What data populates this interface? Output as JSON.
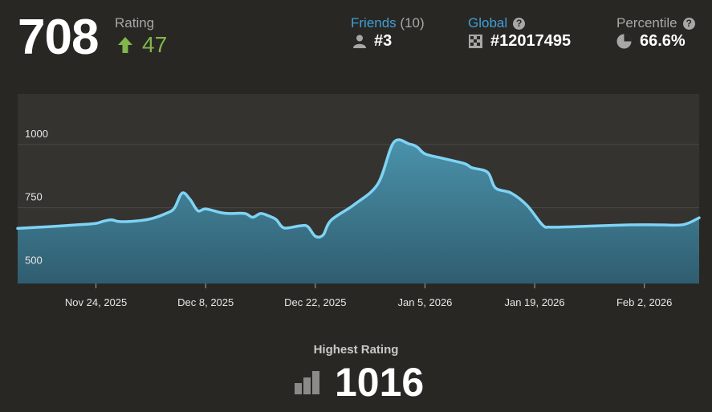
{
  "header": {
    "current_rating": "708",
    "rating_label": "Rating",
    "delta": "47",
    "delta_color": "#81b64c",
    "friends": {
      "label": "Friends",
      "count": "(10)",
      "rank": "#3",
      "icon": "person-icon"
    },
    "global": {
      "label": "Global",
      "help": "?",
      "rank": "#12017495",
      "icon": "checker-icon"
    },
    "percentile": {
      "label": "Percentile",
      "help": "?",
      "value": "66.6%",
      "icon": "pie-icon"
    }
  },
  "chart_data": {
    "type": "area",
    "line_color": "#7fd3f5",
    "fill_color": "#3f8aa4",
    "grid": true,
    "y_ticks": [
      500,
      750,
      1000
    ],
    "ylim": [
      450,
      1200
    ],
    "x_tick_labels": [
      "Nov 24, 2025",
      "Dec 8, 2025",
      "Dec 22, 2025",
      "Jan 5, 2026",
      "Jan 19, 2026",
      "Feb 2, 2026"
    ],
    "x_tick_dates": [
      "2025-11-24",
      "2025-12-08",
      "2025-12-22",
      "2026-01-05",
      "2026-01-19",
      "2026-02-02"
    ],
    "xlim": [
      "2025-11-14",
      "2026-02-09"
    ],
    "points": [
      {
        "x": "2025-11-14",
        "y": 668
      },
      {
        "x": "2025-11-18",
        "y": 675
      },
      {
        "x": "2025-11-22",
        "y": 683
      },
      {
        "x": "2025-11-24",
        "y": 688
      },
      {
        "x": "2025-11-25",
        "y": 697
      },
      {
        "x": "2025-11-26",
        "y": 702
      },
      {
        "x": "2025-11-27",
        "y": 695
      },
      {
        "x": "2025-11-29",
        "y": 697
      },
      {
        "x": "2025-12-01",
        "y": 706
      },
      {
        "x": "2025-12-03",
        "y": 728
      },
      {
        "x": "2025-12-04",
        "y": 748
      },
      {
        "x": "2025-12-05",
        "y": 808
      },
      {
        "x": "2025-12-06",
        "y": 783
      },
      {
        "x": "2025-12-07",
        "y": 738
      },
      {
        "x": "2025-12-08",
        "y": 745
      },
      {
        "x": "2025-12-10",
        "y": 730
      },
      {
        "x": "2025-12-11",
        "y": 727
      },
      {
        "x": "2025-12-13",
        "y": 727
      },
      {
        "x": "2025-12-14",
        "y": 712
      },
      {
        "x": "2025-12-15",
        "y": 727
      },
      {
        "x": "2025-12-16",
        "y": 718
      },
      {
        "x": "2025-12-17",
        "y": 703
      },
      {
        "x": "2025-12-18",
        "y": 670
      },
      {
        "x": "2025-12-20",
        "y": 678
      },
      {
        "x": "2025-12-21",
        "y": 676
      },
      {
        "x": "2025-12-22",
        "y": 637
      },
      {
        "x": "2025-12-23",
        "y": 642
      },
      {
        "x": "2025-12-24",
        "y": 700
      },
      {
        "x": "2025-12-27",
        "y": 763
      },
      {
        "x": "2025-12-30",
        "y": 845
      },
      {
        "x": "2026-01-01",
        "y": 1008
      },
      {
        "x": "2026-01-03",
        "y": 1002
      },
      {
        "x": "2026-01-04",
        "y": 990
      },
      {
        "x": "2026-01-05",
        "y": 963
      },
      {
        "x": "2026-01-07",
        "y": 947
      },
      {
        "x": "2026-01-10",
        "y": 925
      },
      {
        "x": "2026-01-11",
        "y": 908
      },
      {
        "x": "2026-01-13",
        "y": 890
      },
      {
        "x": "2026-01-14",
        "y": 828
      },
      {
        "x": "2026-01-16",
        "y": 808
      },
      {
        "x": "2026-01-18",
        "y": 760
      },
      {
        "x": "2026-01-20",
        "y": 682
      },
      {
        "x": "2026-01-21",
        "y": 673
      },
      {
        "x": "2026-01-24",
        "y": 675
      },
      {
        "x": "2026-01-31",
        "y": 682
      },
      {
        "x": "2026-02-04",
        "y": 682
      },
      {
        "x": "2026-02-07",
        "y": 683
      },
      {
        "x": "2026-02-09",
        "y": 710
      }
    ]
  },
  "highest": {
    "label": "Highest Rating",
    "value": "1016",
    "icon": "bar-chart-icon"
  }
}
